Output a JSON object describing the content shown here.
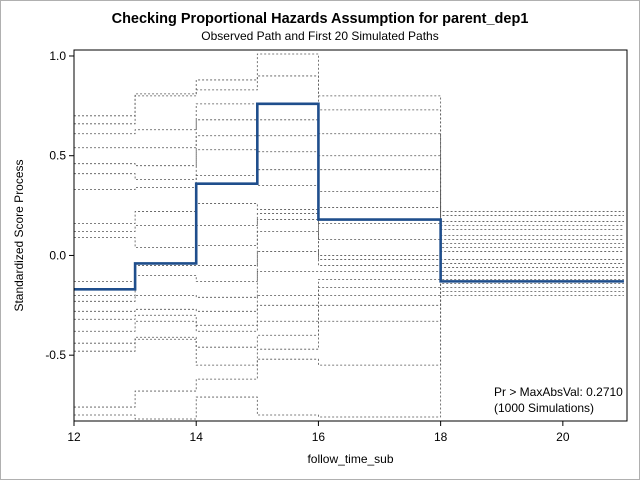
{
  "chart_data": {
    "type": "line",
    "title": "Checking Proportional Hazards Assumption for parent_dep1",
    "subtitle": "Observed Path and First 20 Simulated Paths",
    "xlabel": "follow_time_sub",
    "ylabel": "Standardized Score Process",
    "xlim": [
      12,
      21.05
    ],
    "ylim": [
      -0.83,
      1.03
    ],
    "xticks": [
      12,
      14,
      16,
      18,
      20
    ],
    "yticks": [
      -0.5,
      0.0,
      0.5,
      1.0
    ],
    "ytick_labels": [
      "-0.5",
      "0.0",
      "0.5",
      "1.0"
    ],
    "grid": false,
    "step_x": [
      12,
      13,
      14,
      15,
      16,
      18,
      21
    ],
    "observed": {
      "color": "#1f4e8c",
      "values": [
        -0.17,
        -0.04,
        0.36,
        0.76,
        0.18,
        -0.13
      ]
    },
    "simulated": [
      [
        0.7,
        0.81,
        0.88,
        1.01,
        0.8,
        0.22
      ],
      [
        0.66,
        0.8,
        0.83,
        0.9,
        0.73,
        0.2
      ],
      [
        0.61,
        0.63,
        0.76,
        0.68,
        0.61,
        0.17
      ],
      [
        0.54,
        0.54,
        0.68,
        0.6,
        0.5,
        0.15
      ],
      [
        0.46,
        0.45,
        0.6,
        0.52,
        0.43,
        0.13
      ],
      [
        0.41,
        0.38,
        0.53,
        0.43,
        0.32,
        0.1
      ],
      [
        0.33,
        0.34,
        0.4,
        0.35,
        0.24,
        0.08
      ],
      [
        0.16,
        0.22,
        0.26,
        0.23,
        0.16,
        0.06
      ],
      [
        0.12,
        0.15,
        0.15,
        0.21,
        0.08,
        0.04
      ],
      [
        0.09,
        0.04,
        0.05,
        0.18,
        0.0,
        0.02
      ],
      [
        -0.13,
        -0.05,
        -0.05,
        0.12,
        -0.02,
        -0.02
      ],
      [
        -0.2,
        -0.1,
        -0.13,
        0.02,
        -0.05,
        -0.04
      ],
      [
        -0.23,
        -0.2,
        -0.21,
        -0.08,
        -0.08,
        -0.06
      ],
      [
        -0.28,
        -0.27,
        -0.28,
        -0.2,
        -0.12,
        -0.08
      ],
      [
        -0.32,
        -0.3,
        -0.35,
        -0.25,
        -0.16,
        -0.1
      ],
      [
        -0.38,
        -0.33,
        -0.38,
        -0.33,
        -0.2,
        -0.12
      ],
      [
        -0.44,
        -0.41,
        -0.46,
        -0.4,
        -0.25,
        -0.14
      ],
      [
        -0.48,
        -0.42,
        -0.55,
        -0.47,
        -0.33,
        -0.16
      ],
      [
        -0.76,
        -0.68,
        -0.62,
        -0.52,
        -0.55,
        -0.18
      ],
      [
        -0.8,
        -0.82,
        -0.71,
        -0.8,
        -0.81,
        -0.2
      ]
    ],
    "annotation": [
      "Pr > MaxAbsVal: 0.2710",
      "(1000 Simulations)"
    ]
  }
}
